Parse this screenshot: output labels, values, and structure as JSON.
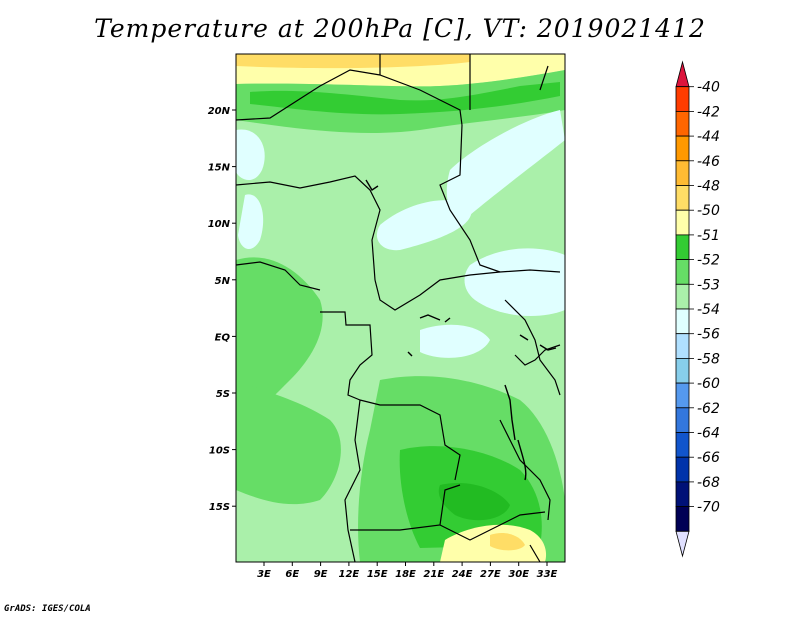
{
  "title": "Temperature at 200hPa [C], VT: 2019021412",
  "credit": "GrADS: IGES/COLA",
  "map": {
    "lon_ticks": [
      "3E",
      "6E",
      "9E",
      "12E",
      "15E",
      "18E",
      "21E",
      "24E",
      "27E",
      "30E",
      "33E"
    ],
    "lat_ticks": [
      "20N",
      "15N",
      "10N",
      "5N",
      "EQ",
      "5S",
      "10S",
      "15S"
    ]
  },
  "colorbar": {
    "labels": [
      "-40",
      "-42",
      "-44",
      "-46",
      "-48",
      "-50",
      "-51",
      "-52",
      "-53",
      "-54",
      "-56",
      "-58",
      "-60",
      "-62",
      "-64",
      "-66",
      "-68",
      "-70"
    ],
    "colors": [
      "#dc143c",
      "#ff3c00",
      "#ff6600",
      "#ff9900",
      "#ffbb33",
      "#ffdd66",
      "#ffffaa",
      "#33cc33",
      "#66dd66",
      "#aaf0aa",
      "#e0ffff",
      "#b0e0ff",
      "#87ceeb",
      "#5599ee",
      "#3377dd",
      "#1155cc",
      "#0033aa",
      "#001177",
      "#000055",
      "#e0e0ff"
    ]
  }
}
